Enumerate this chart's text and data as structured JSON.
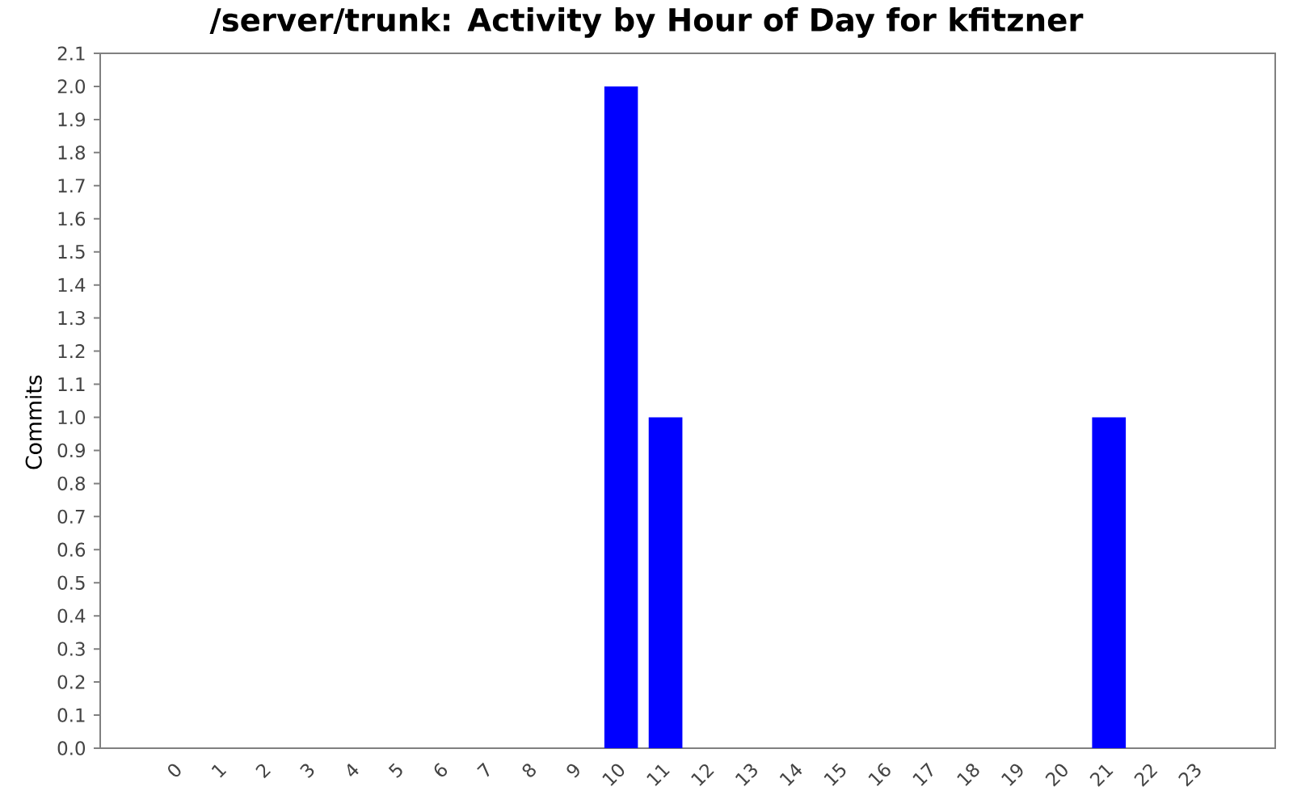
{
  "chart_data": {
    "type": "bar",
    "title": "/server/trunk: Activity by Hour of Day for kfitzner",
    "ylabel": "Commits",
    "categories": [
      "0",
      "1",
      "2",
      "3",
      "4",
      "5",
      "6",
      "7",
      "8",
      "9",
      "10",
      "11",
      "12",
      "13",
      "14",
      "15",
      "16",
      "17",
      "18",
      "19",
      "20",
      "21",
      "22",
      "23"
    ],
    "values": [
      0,
      0,
      0,
      0,
      0,
      0,
      0,
      0,
      0,
      0,
      2,
      1,
      0,
      0,
      0,
      0,
      0,
      0,
      0,
      0,
      0,
      1,
      0,
      0
    ],
    "color": "#0000ff",
    "ylim": [
      0,
      2.1
    ],
    "yticks": [
      {
        "value": 0,
        "label": "0.0"
      },
      0.1,
      0.2,
      0.3,
      0.4,
      0.5,
      0.6,
      0.7,
      0.8,
      0.9,
      {
        "value": 1,
        "label": "1.0"
      },
      1.1,
      1.2,
      1.3,
      1.4,
      1.5,
      1.6,
      1.7,
      1.8,
      1.9,
      {
        "value": 2,
        "label": "2.0"
      },
      2.1
    ],
    "grid": false,
    "legend": false
  }
}
